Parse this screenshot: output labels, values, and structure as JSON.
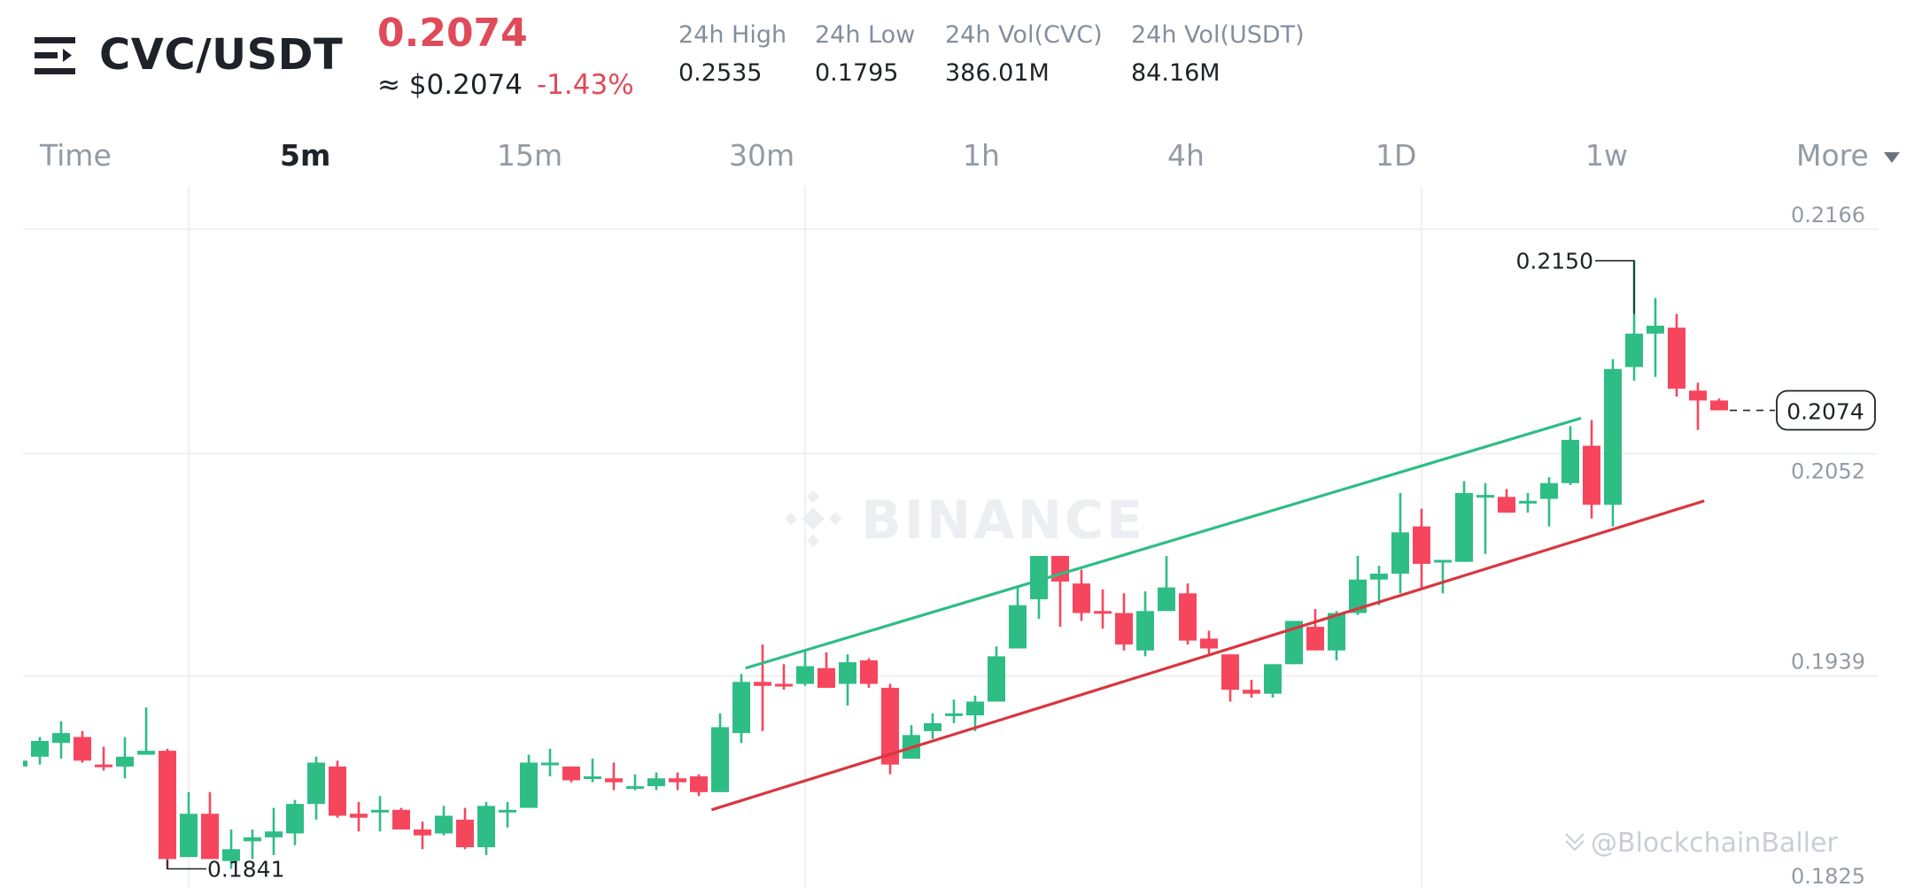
{
  "header": {
    "pair": "CVC/USDT",
    "last_price": "0.2074",
    "usd_price": "≈ $0.2074",
    "change": "-1.43%",
    "stats": [
      {
        "label": "24h High",
        "value": "0.2535"
      },
      {
        "label": "24h Low",
        "value": "0.1795"
      },
      {
        "label": "24h Vol(CVC)",
        "value": "386.01M"
      },
      {
        "label": "24h Vol(USDT)",
        "value": "84.16M"
      }
    ]
  },
  "tabs": [
    {
      "label": "Time"
    },
    {
      "label": "5m",
      "active": true
    },
    {
      "label": "15m"
    },
    {
      "label": "30m"
    },
    {
      "label": "1h"
    },
    {
      "label": "4h"
    },
    {
      "label": "1D"
    },
    {
      "label": "1w"
    },
    {
      "label": "More"
    }
  ],
  "colors": {
    "up": "#2ebd85",
    "down": "#f6465d",
    "down_text": "#e04a59",
    "resistance_line": "#2ebd85",
    "support_line": "#d9363e"
  },
  "watermarks": {
    "brand": "BINANCE",
    "credit": "@BlockchainBaller"
  },
  "chart_data": {
    "type": "candlestick",
    "y_ticks": [
      "0.2166",
      "0.2052",
      "0.1939",
      "0.1825"
    ],
    "ylim": [
      0.1825,
      0.2166
    ],
    "grid": true,
    "high_annotation": "0.2150",
    "low_annotation": "0.1841",
    "last_price_label": "0.2074",
    "candles_ohlc": [
      [
        0.1893,
        0.1899,
        0.189,
        0.1896
      ],
      [
        0.1898,
        0.1908,
        0.1894,
        0.1906
      ],
      [
        0.1905,
        0.1916,
        0.1897,
        0.191
      ],
      [
        0.1908,
        0.1911,
        0.1895,
        0.1896
      ],
      [
        0.1894,
        0.1903,
        0.1891,
        0.1893
      ],
      [
        0.1893,
        0.1908,
        0.1887,
        0.1898
      ],
      [
        0.1899,
        0.1923,
        0.1899,
        0.1901
      ],
      [
        0.1901,
        0.1902,
        0.1841,
        0.1846
      ],
      [
        0.1847,
        0.188,
        0.1847,
        0.1869
      ],
      [
        0.1869,
        0.188,
        0.1846,
        0.1846
      ],
      [
        0.1845,
        0.1861,
        0.1841,
        0.1851
      ],
      [
        0.1855,
        0.1861,
        0.1846,
        0.1857
      ],
      [
        0.1857,
        0.1872,
        0.1848,
        0.186
      ],
      [
        0.1859,
        0.1876,
        0.1853,
        0.1874
      ],
      [
        0.1874,
        0.1898,
        0.1866,
        0.1895
      ],
      [
        0.1893,
        0.1896,
        0.1867,
        0.1868
      ],
      [
        0.1869,
        0.1875,
        0.186,
        0.1867
      ],
      [
        0.187,
        0.1878,
        0.186,
        0.1871
      ],
      [
        0.1871,
        0.1872,
        0.1861,
        0.1861
      ],
      [
        0.1861,
        0.1865,
        0.1851,
        0.1858
      ],
      [
        0.1859,
        0.1873,
        0.1858,
        0.1868
      ],
      [
        0.1866,
        0.1872,
        0.1851,
        0.1852
      ],
      [
        0.1852,
        0.1875,
        0.1848,
        0.1873
      ],
      [
        0.187,
        0.1875,
        0.1862,
        0.1871
      ],
      [
        0.1872,
        0.1899,
        0.1872,
        0.1895
      ],
      [
        0.1894,
        0.1902,
        0.1888,
        0.1895
      ],
      [
        0.1893,
        0.1893,
        0.1885,
        0.1886
      ],
      [
        0.1887,
        0.1897,
        0.1885,
        0.1888
      ],
      [
        0.1887,
        0.1895,
        0.1881,
        0.1885
      ],
      [
        0.1882,
        0.1889,
        0.1881,
        0.1883
      ],
      [
        0.1883,
        0.189,
        0.1881,
        0.1887
      ],
      [
        0.1887,
        0.189,
        0.1881,
        0.1885
      ],
      [
        0.1888,
        0.1889,
        0.1878,
        0.188
      ],
      [
        0.188,
        0.192,
        0.188,
        0.1913
      ],
      [
        0.191,
        0.194,
        0.1905,
        0.1936
      ],
      [
        0.1936,
        0.1955,
        0.1911,
        0.1934
      ],
      [
        0.1935,
        0.1945,
        0.1932,
        0.1934
      ],
      [
        0.1935,
        0.1952,
        0.1934,
        0.1944
      ],
      [
        0.1943,
        0.1951,
        0.1933,
        0.1933
      ],
      [
        0.1935,
        0.195,
        0.1924,
        0.1946
      ],
      [
        0.1947,
        0.1948,
        0.1933,
        0.1935
      ],
      [
        0.1933,
        0.1935,
        0.1889,
        0.1894
      ],
      [
        0.1897,
        0.1914,
        0.1897,
        0.1909
      ],
      [
        0.1911,
        0.192,
        0.1907,
        0.1915
      ],
      [
        0.1919,
        0.1927,
        0.1915,
        0.192
      ],
      [
        0.1919,
        0.1929,
        0.1911,
        0.1926
      ],
      [
        0.1926,
        0.1954,
        0.1926,
        0.1949
      ],
      [
        0.1953,
        0.1984,
        0.1953,
        0.1975
      ],
      [
        0.1978,
        0.2,
        0.1968,
        0.2
      ],
      [
        0.2,
        0.2,
        0.1964,
        0.1987
      ],
      [
        0.1986,
        0.1993,
        0.1967,
        0.1971
      ],
      [
        0.1972,
        0.1983,
        0.1963,
        0.1971
      ],
      [
        0.1971,
        0.1981,
        0.1952,
        0.1955
      ],
      [
        0.1952,
        0.1982,
        0.1949,
        0.1972
      ],
      [
        0.1972,
        0.2,
        0.1972,
        0.1984
      ],
      [
        0.1981,
        0.1986,
        0.1955,
        0.1957
      ],
      [
        0.1958,
        0.1962,
        0.195,
        0.1953
      ],
      [
        0.195,
        0.195,
        0.1926,
        0.1932
      ],
      [
        0.1932,
        0.1937,
        0.1928,
        0.193
      ],
      [
        0.193,
        0.1945,
        0.1928,
        0.1945
      ],
      [
        0.1945,
        0.1967,
        0.1945,
        0.1967
      ],
      [
        0.1964,
        0.1973,
        0.1952,
        0.1952
      ],
      [
        0.1952,
        0.1972,
        0.1947,
        0.1971
      ],
      [
        0.1971,
        0.2,
        0.197,
        0.1988
      ],
      [
        0.1988,
        0.1995,
        0.1975,
        0.1991
      ],
      [
        0.1991,
        0.2032,
        0.1981,
        0.2012
      ],
      [
        0.2015,
        0.2024,
        0.1984,
        0.1996
      ],
      [
        0.1997,
        0.1998,
        0.1981,
        0.1998
      ],
      [
        0.1997,
        0.2038,
        0.1997,
        0.2032
      ],
      [
        0.203,
        0.2037,
        0.2001,
        0.2031
      ],
      [
        0.203,
        0.2034,
        0.2022,
        0.2022
      ],
      [
        0.2027,
        0.2032,
        0.2022,
        0.2028
      ],
      [
        0.2029,
        0.204,
        0.2015,
        0.2037
      ],
      [
        0.2037,
        0.2066,
        0.2036,
        0.2059
      ],
      [
        0.2056,
        0.2069,
        0.2019,
        0.2026
      ],
      [
        0.2026,
        0.21,
        0.2015,
        0.2095
      ],
      [
        0.2096,
        0.215,
        0.2089,
        0.2113
      ],
      [
        0.2113,
        0.2131,
        0.2091,
        0.2117
      ],
      [
        0.2116,
        0.2123,
        0.2081,
        0.2085
      ],
      [
        0.2084,
        0.2088,
        0.2064,
        0.2079
      ],
      [
        0.2079,
        0.208,
        0.2074,
        0.2074
      ]
    ],
    "trend_lines": [
      {
        "kind": "resistance",
        "start_price": 0.1943,
        "end_price": 0.207
      },
      {
        "kind": "support",
        "start_price": 0.1871,
        "end_price": 0.2028
      }
    ]
  }
}
